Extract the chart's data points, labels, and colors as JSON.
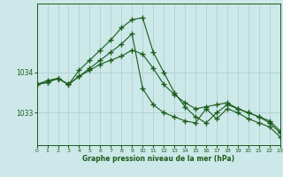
{
  "xlabel": "Graphe pression niveau de la mer (hPa)",
  "background_color": "#cce8e8",
  "plot_bg_color": "#cce8e8",
  "grid_color": "#aacccc",
  "line_color": "#1a5c1a",
  "marker": "+",
  "marker_size": 4,
  "xlim": [
    0,
    23
  ],
  "ylim": [
    1032.2,
    1035.7
  ],
  "yticks": [
    1033,
    1034
  ],
  "xticks": [
    0,
    1,
    2,
    3,
    4,
    5,
    6,
    7,
    8,
    9,
    10,
    11,
    12,
    13,
    14,
    15,
    16,
    17,
    18,
    19,
    20,
    21,
    22,
    23
  ],
  "series": [
    [
      1033.7,
      1033.75,
      1033.85,
      1033.7,
      1033.9,
      1034.05,
      1034.2,
      1034.3,
      1034.4,
      1034.55,
      1034.45,
      1034.1,
      1033.7,
      1033.45,
      1033.25,
      1033.1,
      1033.15,
      1033.2,
      1033.25,
      1033.1,
      1033.0,
      1032.9,
      1032.8,
      1032.55
    ],
    [
      1033.7,
      1033.8,
      1033.85,
      1033.7,
      1034.05,
      1034.3,
      1034.55,
      1034.8,
      1035.1,
      1035.3,
      1035.35,
      1034.5,
      1034.0,
      1033.5,
      1033.15,
      1032.9,
      1032.75,
      1033.0,
      1033.2,
      1033.1,
      1033.0,
      1032.9,
      1032.75,
      1032.5
    ],
    [
      1033.7,
      1033.75,
      1033.85,
      1033.7,
      1033.9,
      1034.1,
      1034.3,
      1034.5,
      1034.7,
      1034.95,
      1033.6,
      1033.2,
      1033.0,
      1032.9,
      1032.8,
      1032.75,
      1033.1,
      1032.85,
      1033.1,
      1033.0,
      1032.85,
      1032.75,
      1032.65,
      1032.4
    ]
  ]
}
